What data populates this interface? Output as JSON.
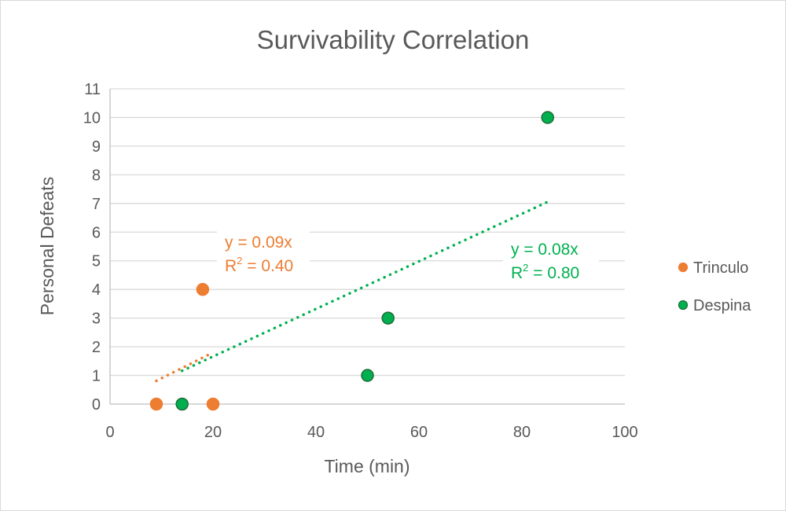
{
  "chart_data": {
    "type": "scatter",
    "title": "Survivability Correlation",
    "xlabel": "Time (min)",
    "ylabel": "Personal Defeats",
    "xlim": [
      0,
      100
    ],
    "ylim": [
      0,
      11
    ],
    "xticks": [
      0,
      20,
      40,
      60,
      80,
      100
    ],
    "yticks": [
      0,
      1,
      2,
      3,
      4,
      5,
      6,
      7,
      8,
      9,
      10,
      11
    ],
    "grid": "horizontal",
    "legend_position": "right",
    "series": [
      {
        "name": "Trinculo",
        "color": "#ED7D31",
        "edge_color": "#ED7D31",
        "points": [
          [
            9,
            0
          ],
          [
            18,
            4
          ],
          [
            20,
            0
          ]
        ],
        "trendline": {
          "type": "linear-through-origin",
          "slope": 0.09,
          "x_range": [
            9,
            20
          ],
          "equation": "y = 0.09x",
          "r2_label": "R",
          "r2_sup": "2",
          "r2_value": " = 0.40"
        }
      },
      {
        "name": "Despina",
        "color": "#00B050",
        "edge_color": "#1E6B35",
        "points": [
          [
            14,
            0
          ],
          [
            50,
            1
          ],
          [
            54,
            3
          ],
          [
            85,
            10
          ]
        ],
        "trendline": {
          "type": "linear-through-origin",
          "slope": 0.083,
          "x_range": [
            14,
            85
          ],
          "equation": "y = 0.08x",
          "r2_label": "R",
          "r2_sup": "2",
          "r2_value": " = 0.80"
        }
      }
    ]
  }
}
